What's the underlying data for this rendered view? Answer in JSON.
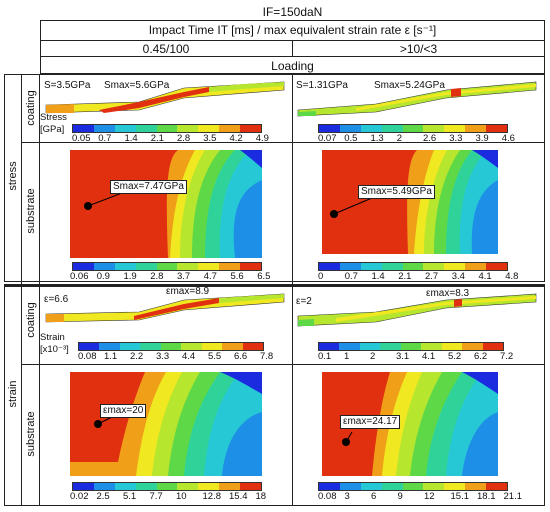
{
  "title": "IF=150daN",
  "column_header": "Impact Time IT [ms] / max equivalent strain rate ε [s⁻¹]",
  "columns": [
    "0.45/100",
    ">10/<3"
  ],
  "phase": "Loading",
  "row_groups": [
    "stress",
    "strain"
  ],
  "subrows": {
    "coating": "coating",
    "substrate": "substrate"
  },
  "colormap": [
    "#1a2be0",
    "#1e8fe6",
    "#27c8d6",
    "#2fd39a",
    "#5fd848",
    "#b6e62e",
    "#f0e820",
    "#f0a018",
    "#e03010"
  ],
  "stress": {
    "coating_label": "Stress\n[GPa]",
    "left": {
      "coating_s": "S=3.5GPa",
      "coating_smax": "Smax=5.6GPa",
      "coating_ticks": [
        "0.05",
        "0.7",
        "1.4",
        "2.1",
        "2.8",
        "3.5",
        "4.2",
        "4.9"
      ],
      "substrate_smax": "Smax=7.47GPa",
      "substrate_ticks": [
        "0.06",
        "0.9",
        "1.9",
        "2.8",
        "3.7",
        "4.7",
        "5.6",
        "6.5"
      ]
    },
    "right": {
      "coating_s": "S=1.31GPa",
      "coating_smax": "Smax=5.24GPa",
      "coating_ticks": [
        "0.07",
        "0.5",
        "1.3",
        "2",
        "2.6",
        "3.3",
        "3.9",
        "4.6"
      ],
      "substrate_smax": "Smax=5.49GPa",
      "substrate_ticks": [
        "0",
        "0.7",
        "1.4",
        "2.1",
        "2.7",
        "3.4",
        "4.1",
        "4.8"
      ]
    }
  },
  "strain": {
    "coating_label": "Strain\n[x10⁻³]",
    "left": {
      "coating_e": "ε=6.6",
      "coating_emax": "εmax=8.9",
      "coating_ticks": [
        "0.08",
        "1.1",
        "2.2",
        "3.3",
        "4.4",
        "5.5",
        "6.6",
        "7.8"
      ],
      "substrate_emax": "εmax=20",
      "substrate_ticks": [
        "0.02",
        "2.5",
        "5.1",
        "7.7",
        "10",
        "12.8",
        "15.4",
        "18"
      ]
    },
    "right": {
      "coating_e": "ε=2",
      "coating_emax": "εmax=8.3",
      "coating_ticks": [
        "0.1",
        "1",
        "2",
        "3.1",
        "4.1",
        "5.2",
        "6.2",
        "7.2"
      ],
      "substrate_emax": "εmax=24.17",
      "substrate_ticks": [
        "0.08",
        "3",
        "6",
        "9",
        "12",
        "15.1",
        "18.1",
        "21.1"
      ]
    }
  }
}
